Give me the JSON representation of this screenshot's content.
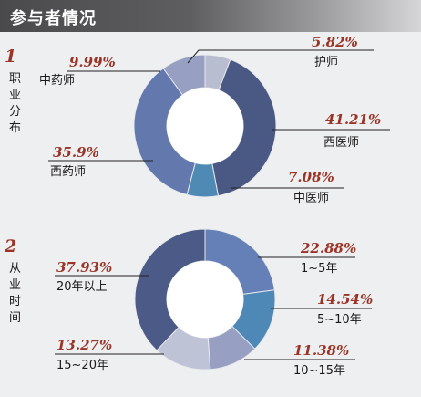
{
  "header": {
    "title": "参与者情况"
  },
  "chart_data": [
    {
      "type": "pie",
      "number": "1",
      "side_label": "职业分布",
      "slices": [
        {
          "label": "护师",
          "value": 5.82,
          "value_text": "5.82%",
          "color": "#b9bdd0"
        },
        {
          "label": "西医师",
          "value": 41.21,
          "value_text": "41.21%",
          "color": "#4a5884"
        },
        {
          "label": "中医师",
          "value": 7.08,
          "value_text": "7.08%",
          "color": "#4e8ab4"
        },
        {
          "label": "西药师",
          "value": 35.9,
          "value_text": "35.9%",
          "color": "#6379ae"
        },
        {
          "label": "中药师",
          "value": 9.99,
          "value_text": "9.99%",
          "color": "#97a0c2"
        }
      ]
    },
    {
      "type": "pie",
      "number": "2",
      "side_label": "从业时间",
      "slices": [
        {
          "label": "1~5年",
          "value": 22.88,
          "value_text": "22.88%",
          "color": "#6580b6"
        },
        {
          "label": "5~10年",
          "value": 14.54,
          "value_text": "14.54%",
          "color": "#4d88b6"
        },
        {
          "label": "10~15年",
          "value": 11.38,
          "value_text": "11.38%",
          "color": "#97a0c2"
        },
        {
          "label": "15~20年",
          "value": 13.27,
          "value_text": "13.27%",
          "color": "#bfc3d6"
        },
        {
          "label": "20年以上",
          "value": 37.93,
          "value_text": "37.93%",
          "color": "#4b5a86"
        }
      ]
    }
  ]
}
